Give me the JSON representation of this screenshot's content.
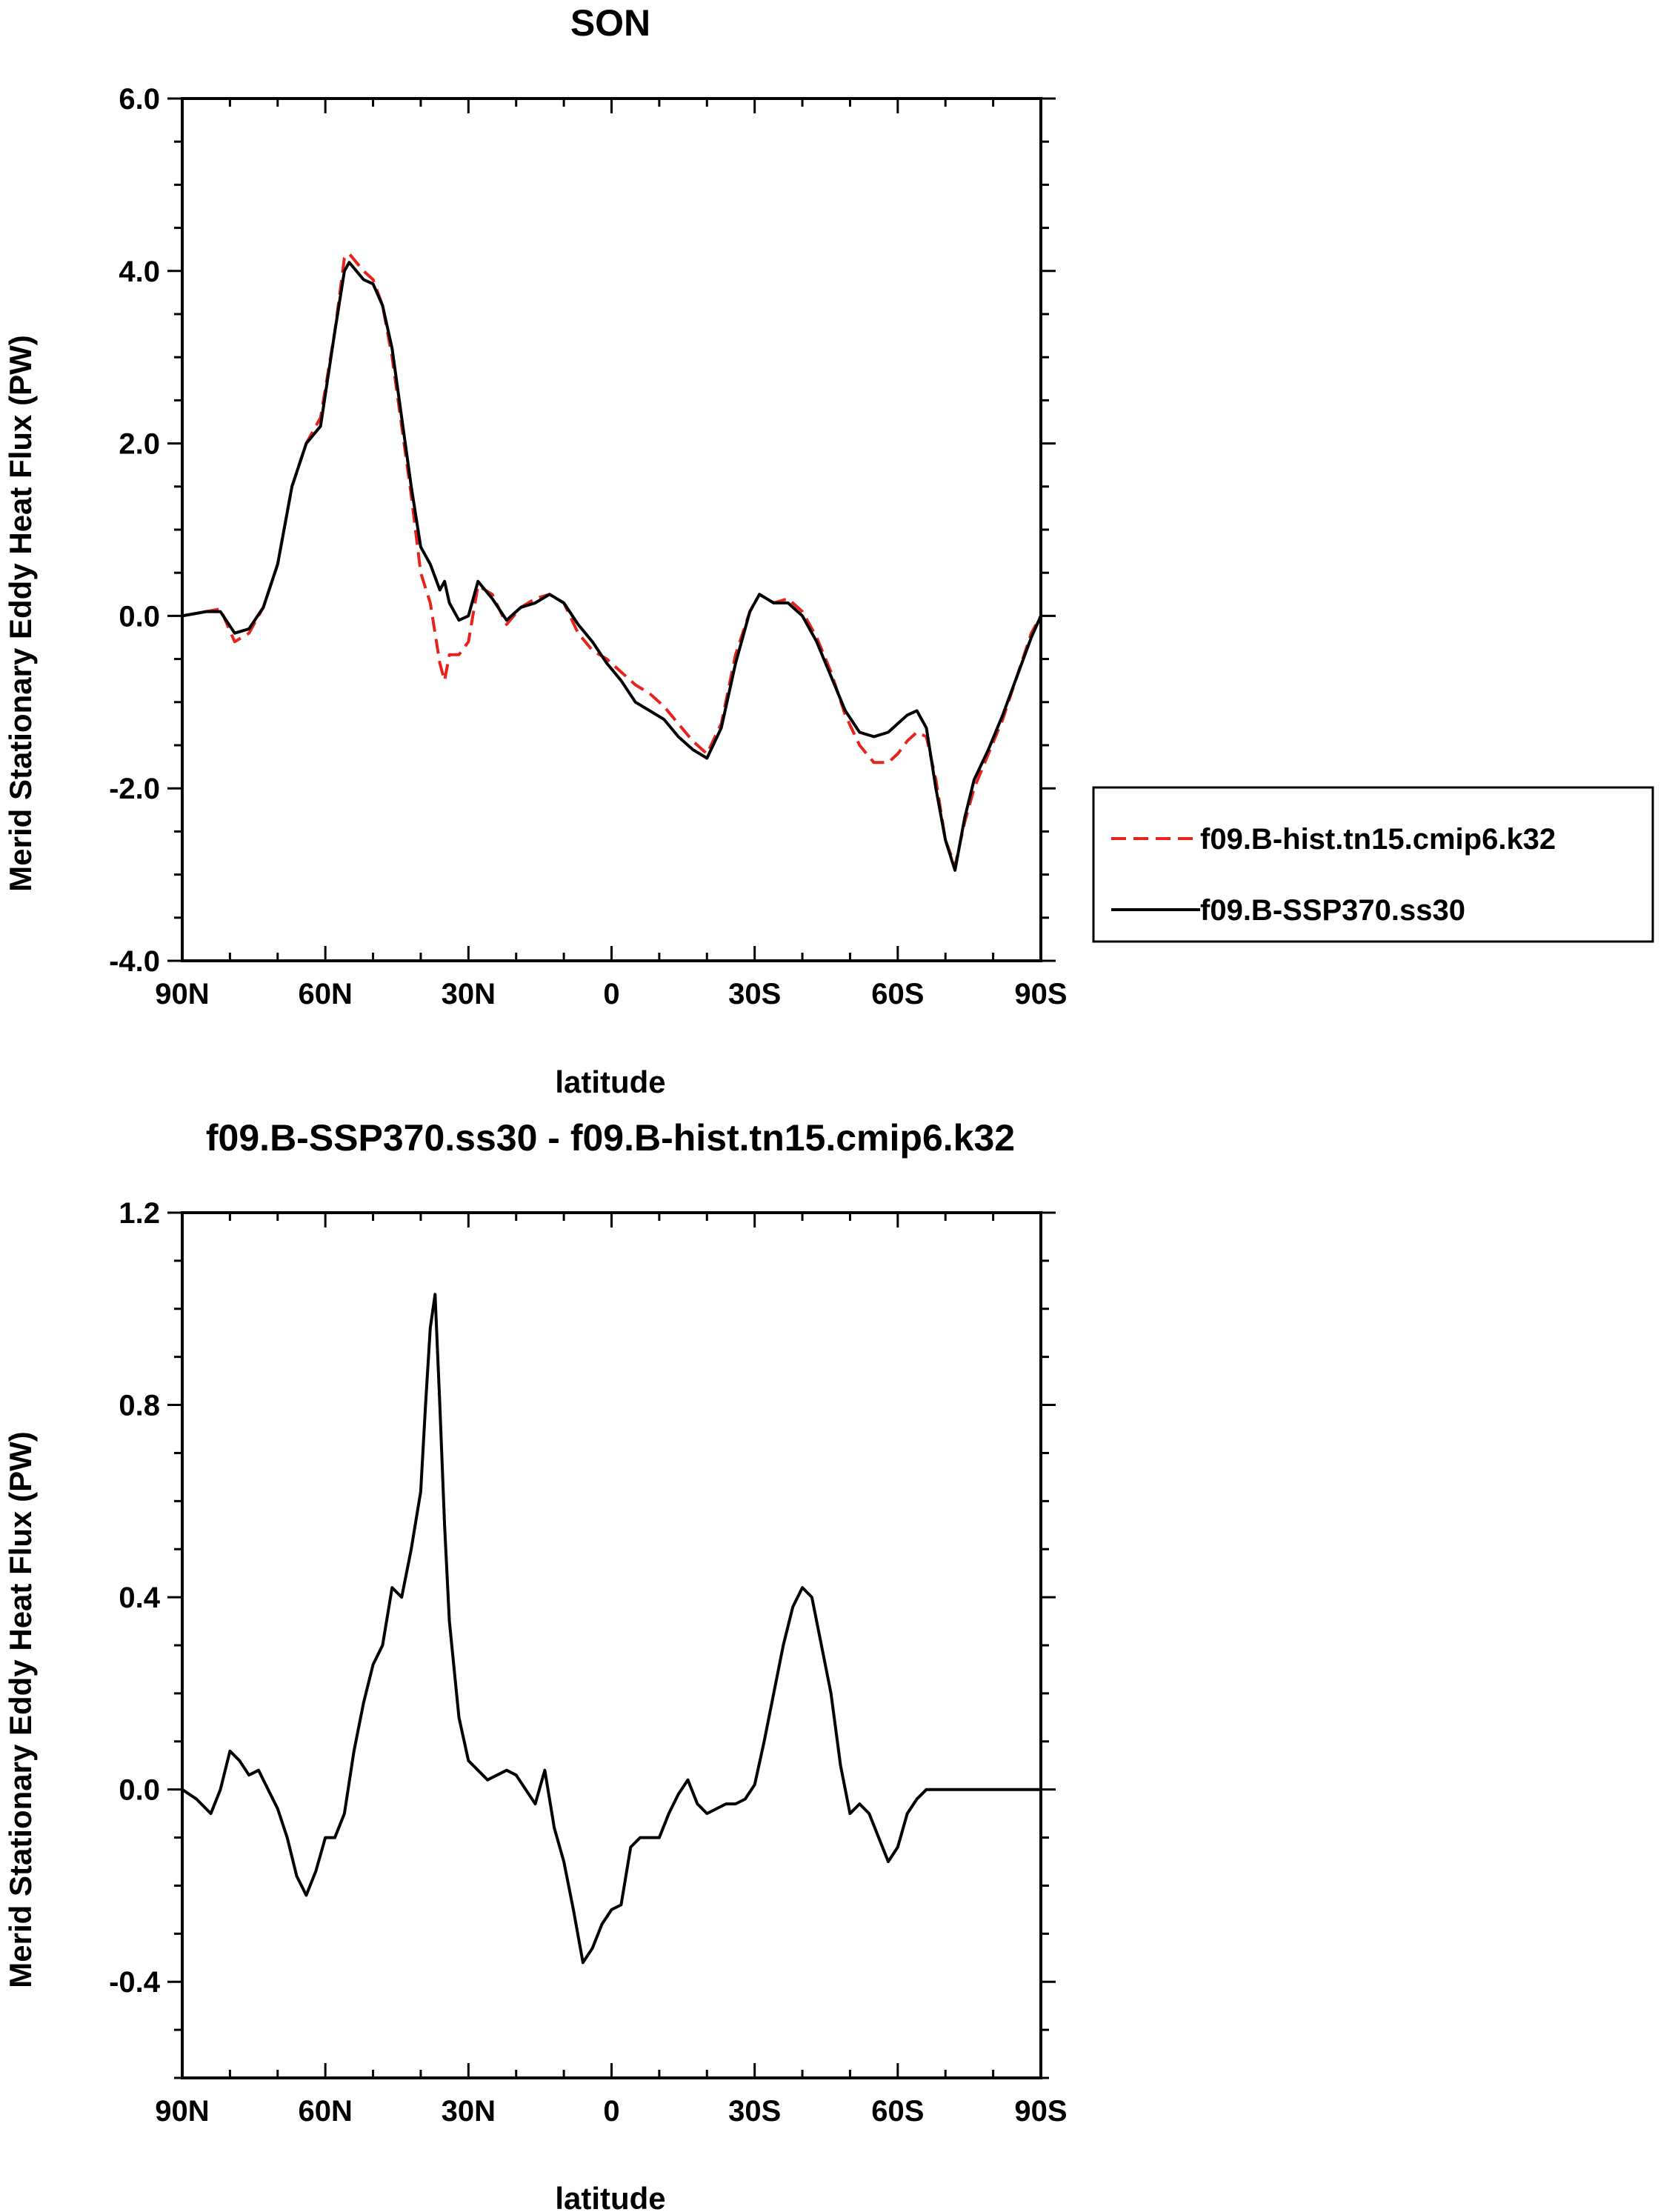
{
  "chart_data": [
    {
      "type": "line",
      "title": "SON",
      "xlabel": "latitude",
      "ylabel": "Merid Stationary Eddy Heat Flux (PW)",
      "xlim": [
        90,
        -90
      ],
      "ylim": [
        -4.0,
        6.0
      ],
      "xticks": [
        {
          "value": 90,
          "label": "90N"
        },
        {
          "value": 60,
          "label": "60N"
        },
        {
          "value": 30,
          "label": "30N"
        },
        {
          "value": 0,
          "label": "0"
        },
        {
          "value": -30,
          "label": "30S"
        },
        {
          "value": -60,
          "label": "60S"
        },
        {
          "value": -90,
          "label": "90S"
        }
      ],
      "yticks": [
        {
          "value": 6.0,
          "label": "6.0"
        },
        {
          "value": 4.0,
          "label": "4.0"
        },
        {
          "value": 2.0,
          "label": "2.0"
        },
        {
          "value": 0.0,
          "label": "0.0"
        },
        {
          "value": -2.0,
          "label": "-2.0"
        },
        {
          "value": -4.0,
          "label": "-4.0"
        }
      ],
      "legend": "right",
      "series": [
        {
          "name": "f09.B-hist.tn15.cmip6.k32",
          "color": "#e8231c",
          "dash": "dashed",
          "x": [
            90,
            85,
            82,
            79,
            76,
            73,
            70,
            67,
            64,
            61,
            58,
            56,
            55,
            52,
            50,
            48,
            46,
            44,
            42,
            40,
            38,
            37,
            36,
            35,
            34,
            32,
            30,
            28,
            25,
            22,
            19,
            16,
            13,
            10,
            7,
            4,
            1,
            -2,
            -5,
            -8,
            -11,
            -14,
            -17,
            -20,
            -23,
            -26,
            -29,
            -31,
            -34,
            -37,
            -40,
            -43,
            -46,
            -49,
            -52,
            -55,
            -58,
            -60,
            -62,
            -64,
            -66,
            -68,
            -70,
            -72,
            -74,
            -76,
            -79,
            -82,
            -85,
            -88,
            -90
          ],
          "y": [
            0.0,
            0.05,
            0.08,
            -0.3,
            -0.2,
            0.1,
            0.6,
            1.5,
            2.0,
            2.3,
            3.3,
            4.15,
            4.2,
            4.0,
            3.9,
            3.6,
            3.0,
            2.2,
            1.4,
            0.5,
            0.15,
            -0.2,
            -0.55,
            -0.75,
            -0.45,
            -0.45,
            -0.3,
            0.35,
            0.25,
            -0.1,
            0.1,
            0.2,
            0.25,
            0.15,
            -0.2,
            -0.4,
            -0.5,
            -0.65,
            -0.8,
            -0.9,
            -1.05,
            -1.25,
            -1.45,
            -1.6,
            -1.25,
            -0.45,
            0.05,
            0.25,
            0.15,
            0.2,
            0.05,
            -0.25,
            -0.65,
            -1.15,
            -1.5,
            -1.7,
            -1.7,
            -1.6,
            -1.45,
            -1.35,
            -1.4,
            -1.9,
            -2.6,
            -2.9,
            -2.4,
            -2.0,
            -1.6,
            -1.2,
            -0.7,
            -0.2,
            0.0
          ]
        },
        {
          "name": "f09.B-SSP370.ss30",
          "color": "#000000",
          "dash": "solid",
          "x": [
            90,
            85,
            82,
            79,
            76,
            73,
            70,
            67,
            64,
            61,
            58,
            56,
            55,
            52,
            50,
            48,
            46,
            44,
            42,
            40,
            38,
            37,
            36,
            35,
            34,
            32,
            30,
            28,
            25,
            22,
            19,
            16,
            13,
            10,
            7,
            4,
            1,
            -2,
            -5,
            -8,
            -11,
            -14,
            -17,
            -20,
            -23,
            -26,
            -29,
            -31,
            -34,
            -37,
            -40,
            -43,
            -46,
            -49,
            -52,
            -55,
            -58,
            -60,
            -62,
            -64,
            -66,
            -68,
            -70,
            -72,
            -74,
            -76,
            -79,
            -82,
            -85,
            -88,
            -90
          ],
          "y": [
            0.0,
            0.05,
            0.05,
            -0.2,
            -0.15,
            0.1,
            0.6,
            1.5,
            2.0,
            2.2,
            3.3,
            4.0,
            4.1,
            3.9,
            3.85,
            3.6,
            3.1,
            2.3,
            1.5,
            0.8,
            0.6,
            0.45,
            0.3,
            0.4,
            0.15,
            -0.05,
            0.0,
            0.4,
            0.2,
            -0.05,
            0.1,
            0.15,
            0.25,
            0.15,
            -0.1,
            -0.3,
            -0.55,
            -0.75,
            -1.0,
            -1.1,
            -1.2,
            -1.4,
            -1.55,
            -1.65,
            -1.3,
            -0.55,
            0.05,
            0.25,
            0.15,
            0.15,
            0.0,
            -0.3,
            -0.7,
            -1.1,
            -1.35,
            -1.4,
            -1.35,
            -1.25,
            -1.15,
            -1.1,
            -1.3,
            -2.0,
            -2.6,
            -2.95,
            -2.35,
            -1.9,
            -1.55,
            -1.15,
            -0.7,
            -0.25,
            0.0
          ]
        }
      ]
    },
    {
      "type": "line",
      "title": "f09.B-SSP370.ss30 - f09.B-hist.tn15.cmip6.k32",
      "xlabel": "latitude",
      "ylabel": "Merid Stationary Eddy Heat Flux (PW)",
      "xlim": [
        90,
        -90
      ],
      "ylim": [
        -0.6,
        1.2
      ],
      "xticks": [
        {
          "value": 90,
          "label": "90N"
        },
        {
          "value": 60,
          "label": "60N"
        },
        {
          "value": 30,
          "label": "30N"
        },
        {
          "value": 0,
          "label": "0"
        },
        {
          "value": -30,
          "label": "30S"
        },
        {
          "value": -60,
          "label": "60S"
        },
        {
          "value": -90,
          "label": "90S"
        }
      ],
      "yticks": [
        {
          "value": 1.2,
          "label": "1.2"
        },
        {
          "value": 0.8,
          "label": "0.8"
        },
        {
          "value": 0.4,
          "label": "0.4"
        },
        {
          "value": 0.0,
          "label": "0.0"
        },
        {
          "value": -0.4,
          "label": "-0.4"
        }
      ],
      "series": [
        {
          "color": "#000000",
          "dash": "solid",
          "x": [
            90,
            87,
            84,
            82,
            80,
            78,
            76,
            74,
            72,
            70,
            68,
            66,
            64,
            62,
            60,
            58,
            56,
            54,
            52,
            50,
            48,
            46,
            44,
            42,
            41,
            40,
            39,
            38,
            37,
            36,
            35,
            34,
            32,
            30,
            28,
            26,
            24,
            22,
            20,
            18,
            16,
            14,
            12,
            10,
            8,
            6,
            4,
            2,
            0,
            -2,
            -4,
            -6,
            -8,
            -10,
            -12,
            -14,
            -16,
            -18,
            -20,
            -22,
            -24,
            -26,
            -28,
            -30,
            -32,
            -34,
            -36,
            -38,
            -40,
            -42,
            -44,
            -46,
            -48,
            -50,
            -52,
            -54,
            -56,
            -58,
            -60,
            -62,
            -64,
            -66,
            -68,
            -70,
            -72,
            -74,
            -76,
            -78,
            -80,
            -82,
            -84,
            -86,
            -88,
            -90
          ],
          "y": [
            0.0,
            -0.02,
            -0.05,
            0.0,
            0.08,
            0.06,
            0.03,
            0.04,
            0.0,
            -0.04,
            -0.1,
            -0.18,
            -0.22,
            -0.17,
            -0.1,
            -0.1,
            -0.05,
            0.08,
            0.18,
            0.26,
            0.3,
            0.42,
            0.4,
            0.5,
            0.56,
            0.62,
            0.8,
            0.96,
            1.03,
            0.8,
            0.55,
            0.35,
            0.15,
            0.06,
            0.04,
            0.02,
            0.03,
            0.04,
            0.03,
            0.0,
            -0.03,
            0.04,
            -0.08,
            -0.15,
            -0.25,
            -0.36,
            -0.33,
            -0.28,
            -0.25,
            -0.24,
            -0.12,
            -0.1,
            -0.1,
            -0.1,
            -0.05,
            -0.01,
            0.02,
            -0.03,
            -0.05,
            -0.04,
            -0.03,
            -0.03,
            -0.02,
            0.01,
            0.1,
            0.2,
            0.3,
            0.38,
            0.42,
            0.4,
            0.3,
            0.2,
            0.05,
            -0.05,
            -0.03,
            -0.05,
            -0.1,
            -0.15,
            -0.12,
            -0.05,
            -0.02,
            0.0,
            0.0,
            0.0,
            0.0,
            0.0,
            0.0,
            0.0,
            0.0,
            0.0,
            0.0,
            0.0,
            0.0,
            0.0
          ]
        }
      ]
    }
  ]
}
